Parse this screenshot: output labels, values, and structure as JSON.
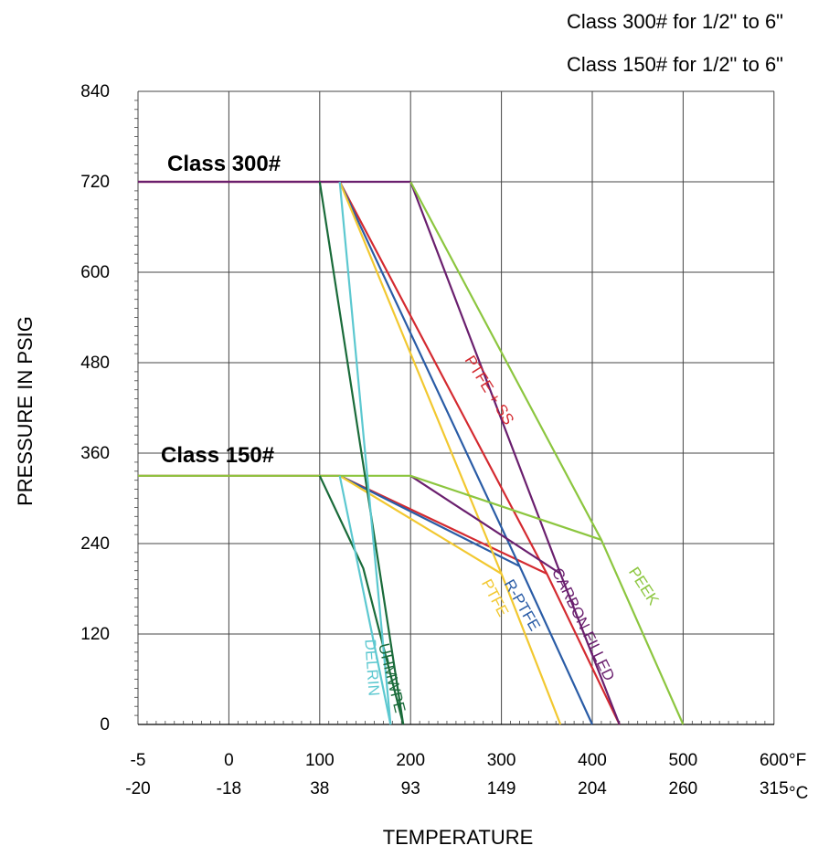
{
  "subtitles": [
    "Class 300# for 1/2\" to 6\"",
    "Class 150# for 1/2\" to 6\""
  ],
  "chart_data": {
    "type": "line",
    "title": "",
    "xlabel": "TEMPERATURE",
    "ylabel": "PRESSURE IN PSIG",
    "ylim": [
      0,
      840
    ],
    "yticks": [
      "0",
      "120",
      "240",
      "360",
      "480",
      "600",
      "720",
      "840"
    ],
    "x_ticks_f": [
      "-5",
      "0",
      "100",
      "200",
      "300",
      "400",
      "500",
      "600"
    ],
    "x_ticks_c": [
      "-20",
      "-18",
      "38",
      "93",
      "149",
      "204",
      "260",
      "315"
    ],
    "x_unit_f": "°F",
    "x_unit_c": "°C",
    "x_scale_note": "non-linear: each labeled °F tick is one grid division; values below are in °F",
    "grid": true,
    "class_labels": [
      {
        "text": "Class 300#",
        "pressure": 720
      },
      {
        "text": "Class 150#",
        "pressure": 330
      }
    ],
    "series": [
      {
        "name": "PTFE + SS",
        "color": "#d42a30",
        "class300": [
          [
            -5,
            720
          ],
          [
            122,
            720
          ],
          [
            350,
            200
          ],
          [
            430,
            0
          ]
        ],
        "class150": [
          [
            -5,
            330
          ],
          [
            122,
            330
          ],
          [
            350,
            200
          ]
        ]
      },
      {
        "name": "R-PTFE",
        "color": "#2a5ca6",
        "class300": [
          [
            122,
            720
          ],
          [
            320,
            210
          ],
          [
            400,
            0
          ]
        ],
        "class150": [
          [
            122,
            330
          ],
          [
            320,
            210
          ]
        ]
      },
      {
        "name": "PTFE",
        "color": "#f2c830",
        "class300": [
          [
            122,
            720
          ],
          [
            300,
            200
          ],
          [
            365,
            0
          ]
        ],
        "class150": [
          [
            122,
            330
          ],
          [
            300,
            200
          ]
        ]
      },
      {
        "name": "CARBON FILLED",
        "color": "#6a1f6e",
        "class300": [
          [
            -5,
            720
          ],
          [
            200,
            720
          ],
          [
            365,
            200
          ],
          [
            430,
            0
          ]
        ],
        "class150": [
          [
            200,
            330
          ],
          [
            365,
            200
          ]
        ]
      },
      {
        "name": "PEEK",
        "color": "#8cc63f",
        "class300": [
          [
            200,
            720
          ],
          [
            410,
            245
          ],
          [
            500,
            0
          ]
        ],
        "class150": [
          [
            -5,
            330
          ],
          [
            200,
            330
          ],
          [
            410,
            245
          ]
        ]
      },
      {
        "name": "UHMWPE",
        "color": "#1a6b3a",
        "class300": [
          [
            100,
            720
          ],
          [
            192,
            0
          ]
        ],
        "class150": [
          [
            100,
            330
          ],
          [
            148,
            207
          ],
          [
            192,
            0
          ]
        ]
      },
      {
        "name": "DELRIN",
        "color": "#5cc8d0",
        "class300": [
          [
            122,
            720
          ],
          [
            178,
            0
          ]
        ],
        "class150": [
          [
            122,
            330
          ],
          [
            178,
            0
          ]
        ]
      }
    ]
  }
}
